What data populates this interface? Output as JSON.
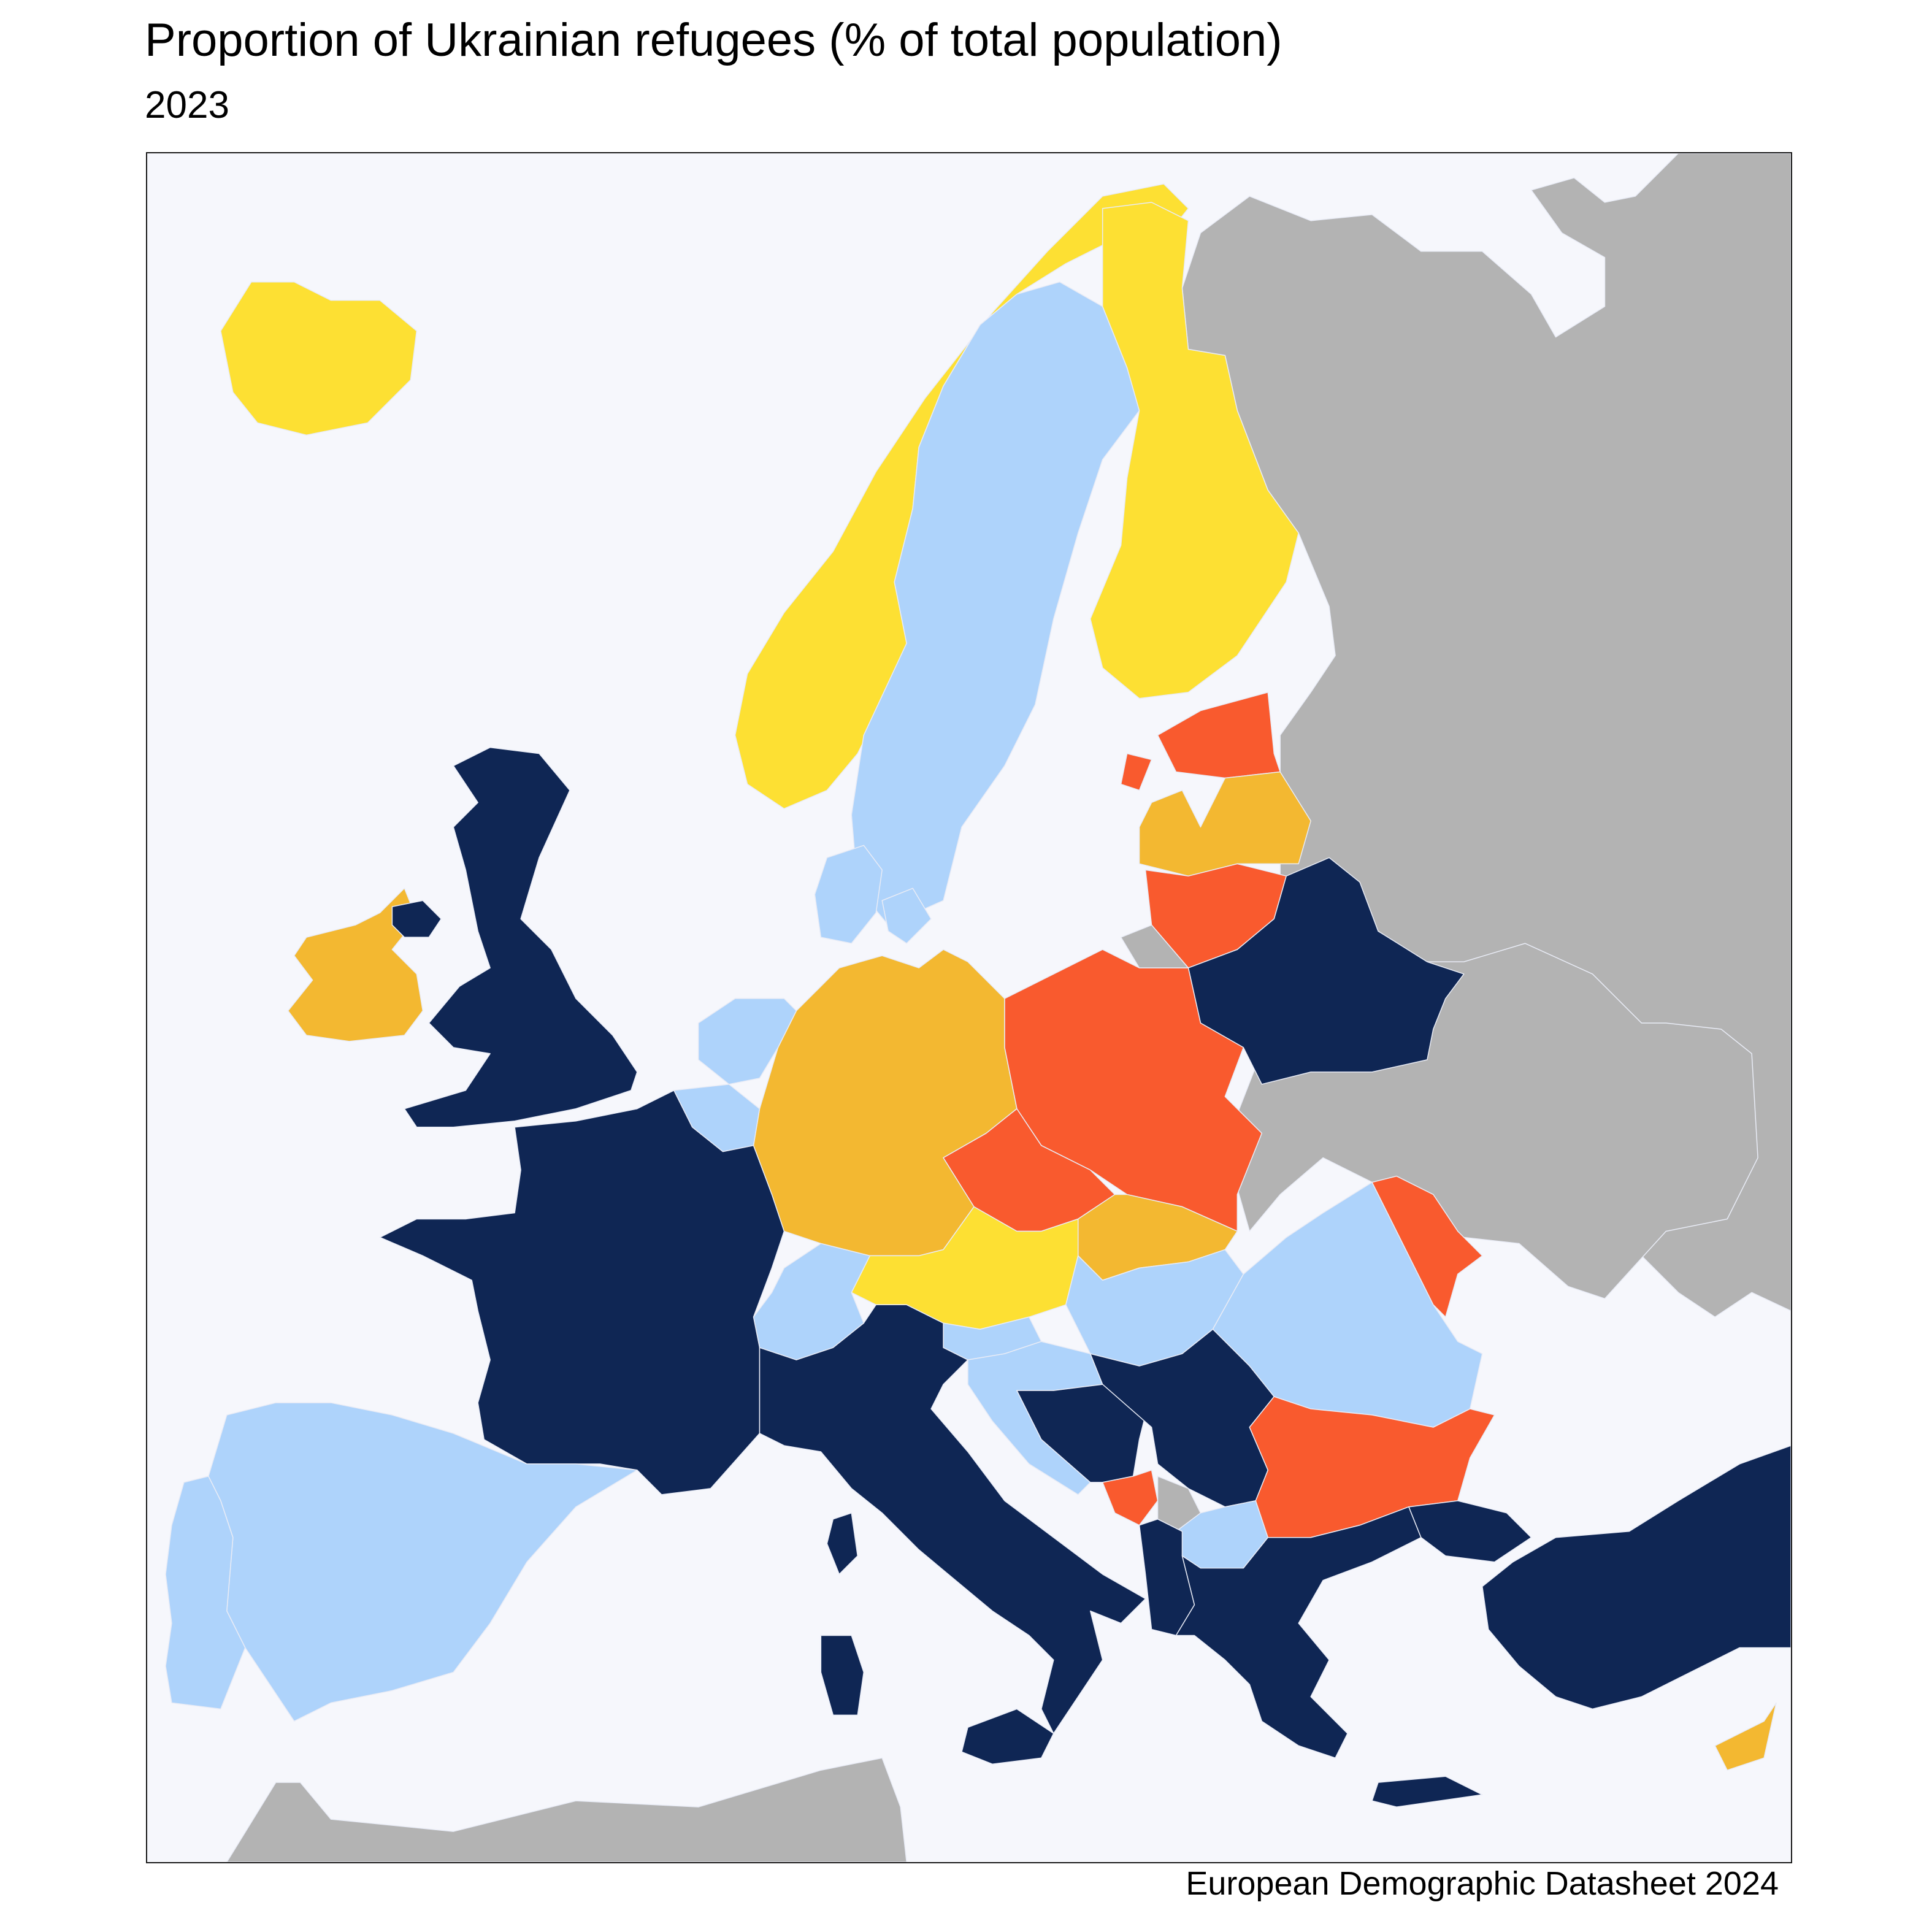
{
  "title": "Proportion of Ukrainian refugees (% of total population)",
  "subtitle": "2023",
  "caption": "European Demographic Datasheet 2024",
  "colors": {
    "sea": "#f6f7fc",
    "no_data": "#b3b3b3",
    "class_1": "#0f2654",
    "class_2": "#aed3fb",
    "class_3": "#fde033",
    "class_4": "#f3b831",
    "class_5": "#f95a2e"
  },
  "regions": [
    {
      "name": "Iceland",
      "class": "class_3"
    },
    {
      "name": "Norway",
      "class": "class_3"
    },
    {
      "name": "Finland",
      "class": "class_3"
    },
    {
      "name": "Sweden",
      "class": "class_2"
    },
    {
      "name": "Denmark",
      "class": "class_2"
    },
    {
      "name": "Estonia",
      "class": "class_5"
    },
    {
      "name": "Latvia",
      "class": "class_4"
    },
    {
      "name": "Lithuania",
      "class": "class_5"
    },
    {
      "name": "Poland",
      "class": "class_5"
    },
    {
      "name": "Czechia",
      "class": "class_5"
    },
    {
      "name": "Slovakia",
      "class": "class_4"
    },
    {
      "name": "Germany",
      "class": "class_4"
    },
    {
      "name": "Ireland",
      "class": "class_4"
    },
    {
      "name": "Cyprus",
      "class": "class_4"
    },
    {
      "name": "Austria",
      "class": "class_3"
    },
    {
      "name": "Moldova",
      "class": "class_5"
    },
    {
      "name": "Bulgaria",
      "class": "class_5"
    },
    {
      "name": "Montenegro",
      "class": "class_5"
    },
    {
      "name": "Netherlands",
      "class": "class_2"
    },
    {
      "name": "Belgium",
      "class": "class_2"
    },
    {
      "name": "Switzerland",
      "class": "class_2"
    },
    {
      "name": "Spain",
      "class": "class_2"
    },
    {
      "name": "Portugal",
      "class": "class_2"
    },
    {
      "name": "Hungary",
      "class": "class_2"
    },
    {
      "name": "Romania",
      "class": "class_2"
    },
    {
      "name": "Slovenia",
      "class": "class_2"
    },
    {
      "name": "Croatia",
      "class": "class_2"
    },
    {
      "name": "North Macedonia",
      "class": "class_2"
    },
    {
      "name": "United Kingdom",
      "class": "class_1"
    },
    {
      "name": "France",
      "class": "class_1"
    },
    {
      "name": "Italy",
      "class": "class_1"
    },
    {
      "name": "Belarus",
      "class": "class_1"
    },
    {
      "name": "Serbia",
      "class": "class_1"
    },
    {
      "name": "Bosnia and Herzegovina",
      "class": "class_1"
    },
    {
      "name": "Albania",
      "class": "class_1"
    },
    {
      "name": "Greece",
      "class": "class_1"
    },
    {
      "name": "Türkiye",
      "class": "class_1"
    },
    {
      "name": "Russia",
      "class": "no_data"
    },
    {
      "name": "Ukraine",
      "class": "no_data"
    },
    {
      "name": "Kosovo",
      "class": "no_data"
    },
    {
      "name": "North Africa",
      "class": "no_data"
    }
  ]
}
